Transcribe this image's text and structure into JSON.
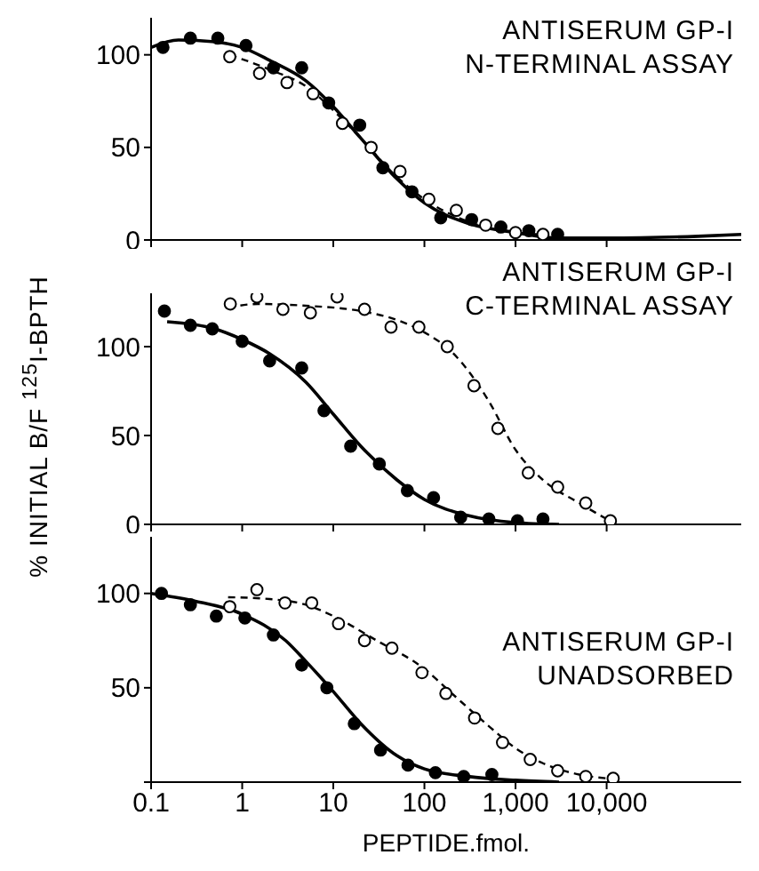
{
  "chart_data": [
    {
      "type": "scatter",
      "title": "ANTISERUM GP-I",
      "subtitle": "N-TERMINAL ASSAY",
      "log": "x",
      "xlim": [
        0.1,
        300000
      ],
      "xticks": [
        {
          "value": 0.1,
          "label": null
        },
        {
          "value": 1,
          "label": null
        },
        {
          "value": 10,
          "label": null
        },
        {
          "value": 100,
          "label": null
        },
        {
          "value": 1000,
          "label": null
        },
        {
          "value": 10000,
          "label": null
        }
      ],
      "ylim": [
        0,
        120
      ],
      "yticks": [
        0,
        50,
        100
      ],
      "tick_labels": "y",
      "series": [
        {
          "color": "#000000",
          "marker": "circle",
          "x": [
            0.135,
            0.27,
            0.54,
            1.1,
            2.2,
            4.5,
            8.9,
            19.5,
            35,
            73,
            151,
            330,
            690,
            1400,
            2900
          ],
          "values": [
            104,
            109,
            109,
            105,
            93,
            93,
            74,
            62,
            39,
            26,
            12,
            11,
            7,
            5,
            3
          ]
        },
        {
          "color": "#000000",
          "marker": "circle",
          "x": [
            0.73,
            1.55,
            3.1,
            6.0,
            12.6,
            26,
            54,
            112,
            224,
            470,
            1000,
            2000
          ],
          "values": [
            99,
            90,
            85,
            79,
            63,
            50,
            37,
            22,
            16,
            8,
            4,
            3
          ]
        },
        {
          "type": "line",
          "color": "#000000",
          "line_style": "solid",
          "x": [
            0.1,
            0.2,
            0.5,
            1,
            2,
            5,
            10,
            20,
            50,
            100,
            300,
            1000,
            3000,
            10000,
            100000,
            300000
          ],
          "values": [
            104,
            108,
            107,
            104,
            97,
            86,
            72,
            55,
            33,
            20,
            9,
            4,
            1,
            1,
            2,
            3
          ]
        },
        {
          "type": "line",
          "color": "#000000",
          "line_style": "dashed",
          "x": [
            0.73,
            2,
            5,
            10,
            20,
            50,
            100,
            300,
            1000,
            2000
          ],
          "values": [
            100,
            92,
            83,
            70,
            55,
            34,
            22,
            10,
            4,
            3
          ]
        }
      ]
    },
    {
      "type": "scatter",
      "title": "ANTISERUM GP-I",
      "subtitle": "C-TERMINAL ASSAY",
      "ylabel": "% INITIAL B/F $^{125}$I-BPTH",
      "log": "x",
      "xlim": [
        0.1,
        300000
      ],
      "xticks": [
        {
          "value": 0.1,
          "label": null
        },
        {
          "value": 1,
          "label": null
        },
        {
          "value": 10,
          "label": null
        },
        {
          "value": 100,
          "label": null
        },
        {
          "value": 1000,
          "label": null
        },
        {
          "value": 10000,
          "label": null
        }
      ],
      "ylim": [
        0,
        130
      ],
      "yticks": [
        0,
        50,
        100
      ],
      "tick_labels": "y",
      "series": [
        {
          "color": "#000000",
          "marker": "circle",
          "x": [
            0.14,
            0.27,
            0.47,
            1.0,
            2.0,
            4.5,
            7.9,
            15.5,
            32,
            65,
            126,
            250,
            510,
            1050,
            2000
          ],
          "values": [
            120,
            112,
            110,
            103,
            92,
            88,
            64,
            44,
            34,
            19,
            15,
            4,
            3,
            2,
            3
          ]
        },
        {
          "color": "#000000",
          "marker": "circle",
          "x": [
            0.74,
            1.45,
            2.8,
            5.6,
            11,
            22,
            43,
            87,
            178,
            350,
            640,
            1380,
            2900,
            5900,
            11000
          ],
          "values": [
            124,
            128,
            121,
            119,
            128,
            121,
            111,
            111,
            100,
            78,
            54,
            29,
            21,
            12,
            2
          ]
        },
        {
          "type": "line",
          "color": "#000000",
          "line_style": "solid",
          "x": [
            0.15,
            0.5,
            1,
            2,
            5,
            10,
            20,
            50,
            100,
            300,
            1000,
            3000
          ],
          "values": [
            114,
            110,
            104,
            96,
            80,
            62,
            44,
            25,
            14,
            5,
            1,
            0
          ]
        },
        {
          "type": "line",
          "color": "#000000",
          "line_style": "dashed",
          "x": [
            0.7,
            1.5,
            5,
            20,
            50,
            100,
            200,
            500,
            1000,
            2000,
            5000,
            10000
          ],
          "values": [
            122,
            124,
            123,
            120,
            115,
            108,
            97,
            70,
            42,
            25,
            12,
            3
          ]
        }
      ]
    },
    {
      "type": "scatter",
      "title": "ANTISERUM GP-I",
      "subtitle": "UNADSORBED",
      "xlabel": "PEPTIDE.fmol.",
      "log": "x",
      "xlim": [
        0.1,
        300000
      ],
      "xticks": [
        0.1,
        1,
        10,
        100,
        {
          "value": 1000,
          "label": "1,000"
        },
        {
          "value": 10000,
          "label": "10,000"
        }
      ],
      "ylim": [
        0,
        130
      ],
      "yticks": [
        {
          "value": 0,
          "label": null
        },
        50,
        100
      ],
      "series": [
        {
          "color": "#000000",
          "marker": "circle",
          "x": [
            0.13,
            0.27,
            0.52,
            1.07,
            2.2,
            4.5,
            8.5,
            17,
            33,
            66,
            132,
            270,
            550
          ],
          "values": [
            100,
            94,
            88,
            87,
            78,
            62,
            50,
            31,
            17,
            9,
            5,
            3,
            4
          ]
        },
        {
          "color": "#000000",
          "marker": "circle",
          "x": [
            0.73,
            1.45,
            2.95,
            5.8,
            11.4,
            22,
            44,
            94,
            172,
            355,
            720,
            1450,
            2900,
            5900,
            11800
          ],
          "values": [
            93,
            102,
            95,
            95,
            84,
            75,
            71,
            58,
            47,
            34,
            21,
            12,
            6,
            3,
            2
          ]
        },
        {
          "type": "line",
          "color": "#000000",
          "line_style": "solid",
          "x": [
            0.1,
            0.3,
            1,
            3,
            5,
            10,
            20,
            50,
            100,
            300,
            1000,
            3000
          ],
          "values": [
            100,
            96,
            89,
            75,
            64,
            48,
            31,
            14,
            7,
            3,
            1,
            0
          ]
        },
        {
          "type": "line",
          "color": "#000000",
          "line_style": "dashed",
          "x": [
            0.7,
            2,
            5,
            10,
            30,
            100,
            200,
            500,
            1000,
            2000,
            5000,
            10000
          ],
          "values": [
            98,
            97,
            94,
            88,
            75,
            60,
            47,
            30,
            18,
            10,
            4,
            2
          ]
        }
      ]
    }
  ]
}
